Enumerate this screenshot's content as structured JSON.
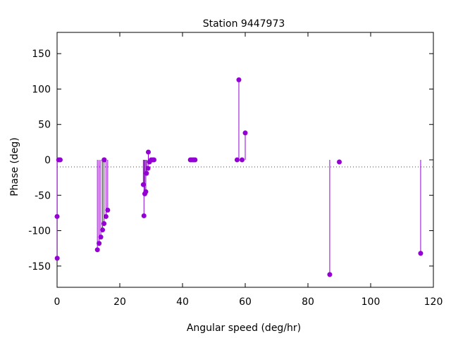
{
  "chart_data": {
    "type": "scatter",
    "style": "impulses",
    "title": "Station 9447973",
    "xlabel": "Angular speed (deg/hr)",
    "ylabel": "Phase (deg)",
    "xlim": [
      0,
      120
    ],
    "ylim": [
      -180,
      180
    ],
    "xticks": [
      0,
      20,
      40,
      60,
      80,
      100,
      120
    ],
    "yticks": [
      -150,
      -100,
      -50,
      0,
      50,
      100,
      150
    ],
    "zero_line": "dotted",
    "grid": false,
    "color": "#9400d3",
    "points": [
      {
        "x": 0.0,
        "y": -80
      },
      {
        "x": 0.04,
        "y": -139
      },
      {
        "x": 0.5,
        "y": 0
      },
      {
        "x": 1.0,
        "y": 0
      },
      {
        "x": 12.85,
        "y": -127
      },
      {
        "x": 13.4,
        "y": -118
      },
      {
        "x": 13.94,
        "y": -109
      },
      {
        "x": 14.5,
        "y": -99
      },
      {
        "x": 14.96,
        "y": -90
      },
      {
        "x": 15.0,
        "y": 0
      },
      {
        "x": 15.04,
        "y": 0
      },
      {
        "x": 15.59,
        "y": -80
      },
      {
        "x": 16.14,
        "y": -71
      },
      {
        "x": 27.5,
        "y": -35
      },
      {
        "x": 27.7,
        "y": -79
      },
      {
        "x": 27.97,
        "y": -48
      },
      {
        "x": 28.3,
        "y": -45
      },
      {
        "x": 28.51,
        "y": -19
      },
      {
        "x": 28.99,
        "y": -12
      },
      {
        "x": 29.1,
        "y": 11
      },
      {
        "x": 29.46,
        "y": -3
      },
      {
        "x": 30.0,
        "y": 0
      },
      {
        "x": 30.5,
        "y": 0
      },
      {
        "x": 30.9,
        "y": 0
      },
      {
        "x": 42.5,
        "y": 0
      },
      {
        "x": 43.0,
        "y": 0
      },
      {
        "x": 43.5,
        "y": 0
      },
      {
        "x": 44.0,
        "y": 0
      },
      {
        "x": 57.4,
        "y": 0
      },
      {
        "x": 57.97,
        "y": 113
      },
      {
        "x": 58.98,
        "y": 0
      },
      {
        "x": 60.0,
        "y": 38
      },
      {
        "x": 86.95,
        "y": -162
      },
      {
        "x": 90.0,
        "y": -3
      },
      {
        "x": 115.94,
        "y": -132
      }
    ]
  }
}
